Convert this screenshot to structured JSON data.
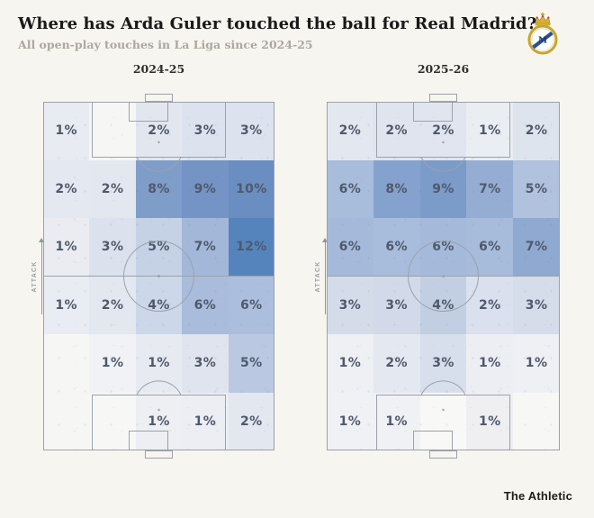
{
  "header": {
    "title": "Where has Arda Guler touched the ball for Real Madrid?",
    "subtitle": "All open-play touches in La Liga since 2024-25"
  },
  "branding": {
    "crest_icon": "real-madrid-crest",
    "footer": "The Athletic"
  },
  "attack_label": "Attack",
  "colors": {
    "page_bg": "#f7f5ef",
    "pitch_line": "#9ba2ab",
    "pct_text": "#4f596b",
    "heat_min": "#f7f8f6",
    "heat_max": "#5584bd"
  },
  "pitches": [
    {
      "season": "2024-25",
      "cells": [
        [
          {
            "label": "1%",
            "color": "#e8ebf1"
          },
          {
            "label": "",
            "color": "#f6f7f5"
          },
          {
            "label": "2%",
            "color": "#e2e6ef"
          },
          {
            "label": "3%",
            "color": "#dde3ee"
          },
          {
            "label": "3%",
            "color": "#dce2ee"
          }
        ],
        [
          {
            "label": "2%",
            "color": "#e4e8f0"
          },
          {
            "label": "2%",
            "color": "#e3e7f0"
          },
          {
            "label": "8%",
            "color": "#7f9dc9"
          },
          {
            "label": "9%",
            "color": "#7394c5"
          },
          {
            "label": "10%",
            "color": "#6a8ec2"
          }
        ],
        [
          {
            "label": "1%",
            "color": "#eaecf2"
          },
          {
            "label": "3%",
            "color": "#dbe1ed"
          },
          {
            "label": "5%",
            "color": "#c5d2e6"
          },
          {
            "label": "7%",
            "color": "#a3b8d8"
          },
          {
            "label": "12%",
            "color": "#5584bd"
          }
        ],
        [
          {
            "label": "1%",
            "color": "#e9ecf2"
          },
          {
            "label": "2%",
            "color": "#e3e7f0"
          },
          {
            "label": "4%",
            "color": "#ccd7e9"
          },
          {
            "label": "6%",
            "color": "#a9bcdb"
          },
          {
            "label": "6%",
            "color": "#abbedd"
          }
        ],
        [
          {
            "label": "",
            "color": "#f6f7f4"
          },
          {
            "label": "1%",
            "color": "#f0f2f5"
          },
          {
            "label": "1%",
            "color": "#e7ebf1"
          },
          {
            "label": "3%",
            "color": "#dfe4ee"
          },
          {
            "label": "5%",
            "color": "#bac9e1"
          }
        ],
        [
          {
            "label": "",
            "color": "#f6f7f4"
          },
          {
            "label": "",
            "color": "#f7f8f6"
          },
          {
            "label": "1%",
            "color": "#edeff3"
          },
          {
            "label": "1%",
            "color": "#eceef3"
          },
          {
            "label": "2%",
            "color": "#e2e7f0"
          }
        ]
      ]
    },
    {
      "season": "2025-26",
      "cells": [
        [
          {
            "label": "2%",
            "color": "#e3e7f0"
          },
          {
            "label": "2%",
            "color": "#dfe4ee"
          },
          {
            "label": "2%",
            "color": "#e1e5ef"
          },
          {
            "label": "1%",
            "color": "#eaedf2"
          },
          {
            "label": "2%",
            "color": "#dee4ee"
          }
        ],
        [
          {
            "label": "6%",
            "color": "#a8bcdc"
          },
          {
            "label": "8%",
            "color": "#84a2cd"
          },
          {
            "label": "9%",
            "color": "#7b9bc9"
          },
          {
            "label": "7%",
            "color": "#95add3"
          },
          {
            "label": "5%",
            "color": "#b0c2de"
          }
        ],
        [
          {
            "label": "6%",
            "color": "#a5badb"
          },
          {
            "label": "6%",
            "color": "#a8bcdc"
          },
          {
            "label": "6%",
            "color": "#a5badb"
          },
          {
            "label": "6%",
            "color": "#a7bbdb"
          },
          {
            "label": "7%",
            "color": "#90a9d1"
          }
        ],
        [
          {
            "label": "3%",
            "color": "#d4dcea"
          },
          {
            "label": "3%",
            "color": "#d2dae9"
          },
          {
            "label": "4%",
            "color": "#c2cfe3"
          },
          {
            "label": "2%",
            "color": "#dae0ed"
          },
          {
            "label": "3%",
            "color": "#d5ddeb"
          }
        ],
        [
          {
            "label": "1%",
            "color": "#eef0f4"
          },
          {
            "label": "2%",
            "color": "#e4e8f0"
          },
          {
            "label": "3%",
            "color": "#d8dfec"
          },
          {
            "label": "1%",
            "color": "#eceef3"
          },
          {
            "label": "1%",
            "color": "#eef0f4"
          }
        ],
        [
          {
            "label": "1%",
            "color": "#f0f1f4"
          },
          {
            "label": "1%",
            "color": "#eff1f4"
          },
          {
            "label": "",
            "color": "#f8f8f6"
          },
          {
            "label": "1%",
            "color": "#efeff2"
          },
          {
            "label": "",
            "color": "#f7f8f6"
          }
        ]
      ]
    }
  ],
  "chart_data": [
    {
      "type": "heatmap",
      "title": "2024-25",
      "subtitle_context": "Share of Arda Guler open-play touches by pitch zone (attack direction: up)",
      "grid": "6 rows x 5 columns, row 1 = attacking end",
      "values_pct": [
        [
          1,
          null,
          2,
          3,
          3
        ],
        [
          2,
          2,
          8,
          9,
          10
        ],
        [
          1,
          3,
          5,
          7,
          12
        ],
        [
          1,
          2,
          4,
          6,
          6
        ],
        [
          null,
          1,
          1,
          3,
          5
        ],
        [
          null,
          null,
          1,
          1,
          2
        ]
      ],
      "value_range": [
        0,
        12
      ],
      "colorscale": [
        "#f7f8f6",
        "#5584bd"
      ]
    },
    {
      "type": "heatmap",
      "title": "2025-26",
      "subtitle_context": "Share of Arda Guler open-play touches by pitch zone (attack direction: up)",
      "grid": "6 rows x 5 columns, row 1 = attacking end",
      "values_pct": [
        [
          2,
          2,
          2,
          1,
          2
        ],
        [
          6,
          8,
          9,
          7,
          5
        ],
        [
          6,
          6,
          6,
          6,
          7
        ],
        [
          3,
          3,
          4,
          2,
          3
        ],
        [
          1,
          2,
          3,
          1,
          1
        ],
        [
          1,
          1,
          null,
          1,
          null
        ]
      ],
      "value_range": [
        0,
        12
      ],
      "colorscale": [
        "#f7f8f6",
        "#5584bd"
      ]
    }
  ]
}
